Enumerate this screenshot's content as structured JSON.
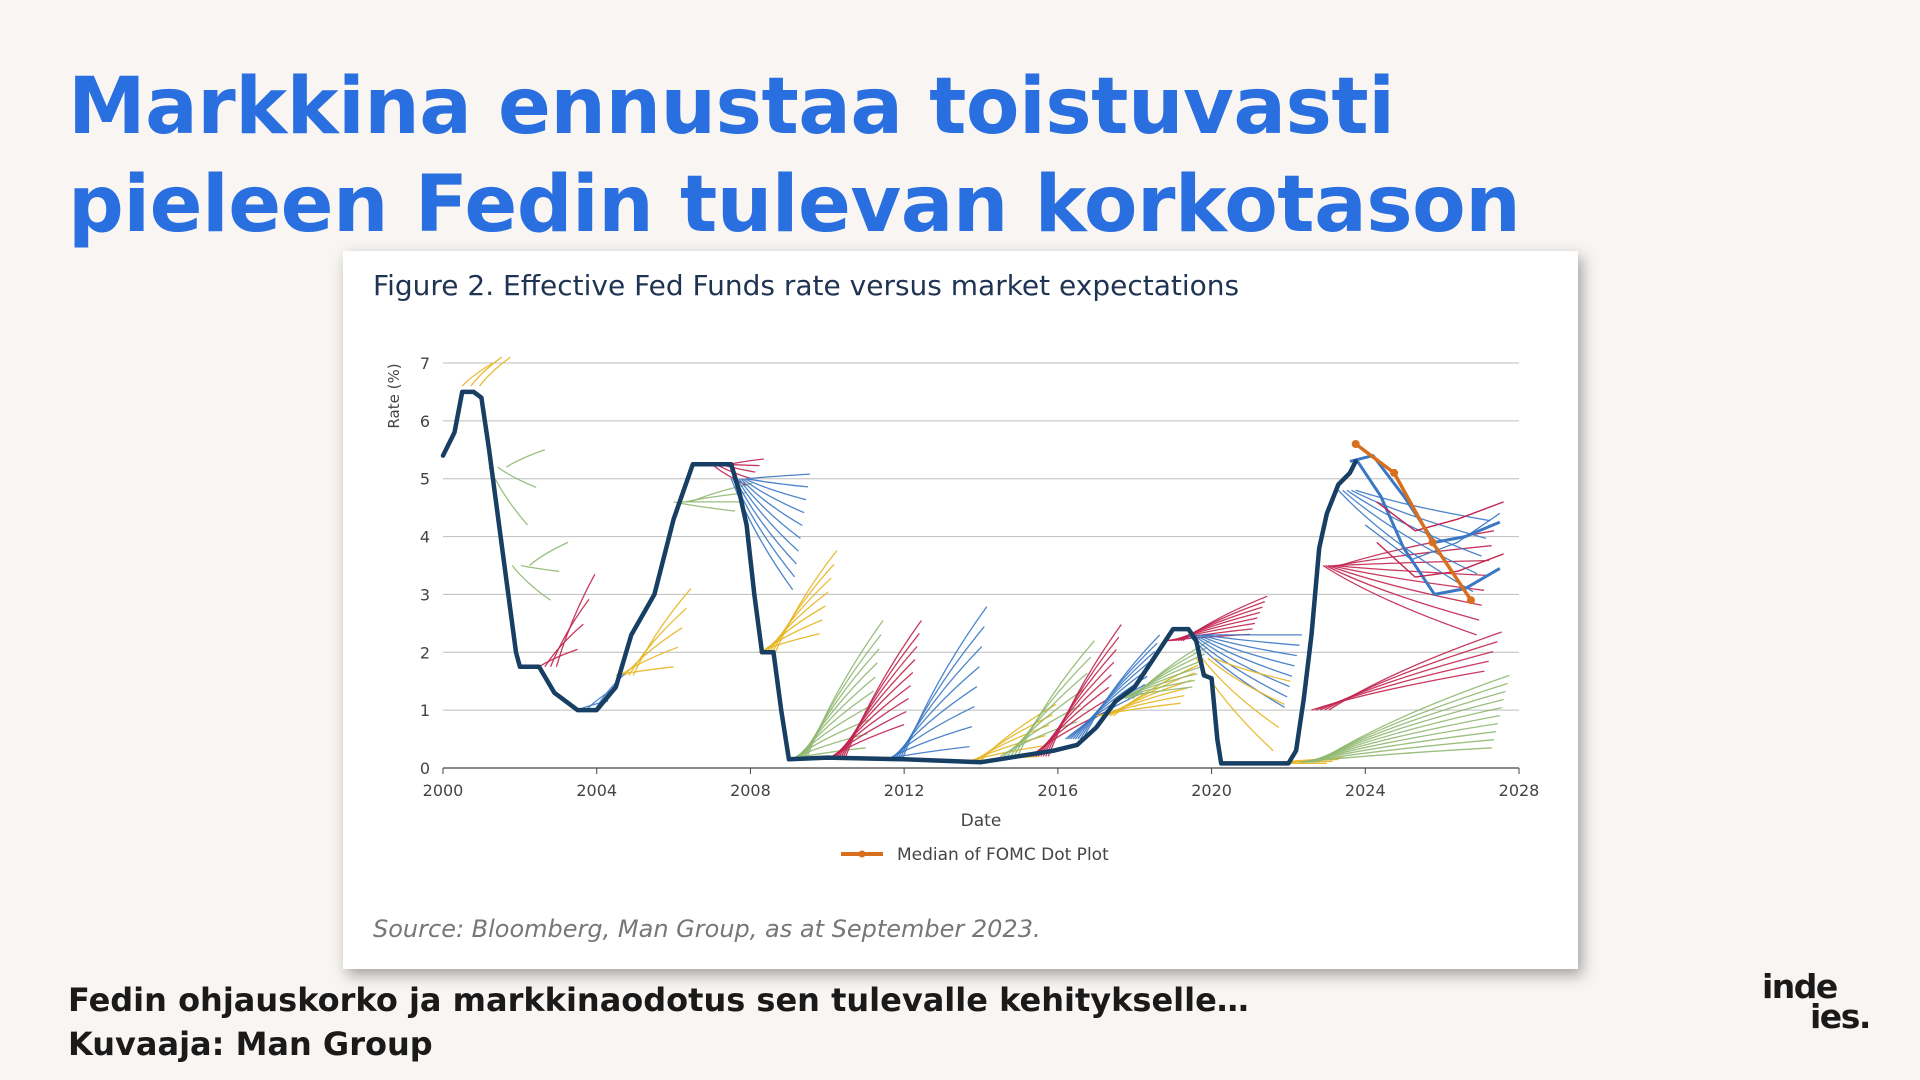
{
  "slide": {
    "title_lines": [
      "Markkina ennustaa toistuvasti",
      "pieleen Fedin tulevan korkotason"
    ],
    "caption_lines": [
      "Fedin ohjauskorko ja markkinaodotus sen tulevalle kehitykselle…",
      "Kuvaaja: Man Group"
    ],
    "logo": {
      "line1": "inde",
      "line2": "ies."
    },
    "colors": {
      "title": "#2a6fdf",
      "background": "#f8f5f2"
    }
  },
  "figure": {
    "title": "Figure 2. Effective Fed Funds rate versus market expectations",
    "source": "Source: Bloomberg, Man Group, as at September 2023."
  },
  "chart_data": {
    "type": "line",
    "xlabel": "Date",
    "ylabel": "Rate (%)",
    "xlim": [
      2000,
      2028
    ],
    "ylim": [
      0,
      7
    ],
    "x_ticks": [
      2000,
      2004,
      2008,
      2012,
      2016,
      2020,
      2024,
      2028
    ],
    "y_ticks": [
      0,
      1,
      2,
      3,
      4,
      5,
      6,
      7
    ],
    "grid": "horizontal",
    "legend_position": "bottom",
    "legend": [
      {
        "name": "Median of FOMC Dot Plot",
        "color": "#d86f1e"
      }
    ],
    "series_colors": {
      "effective_rate": "#173e63",
      "fomc_median": "#d86f1e",
      "expectations": [
        "#3a78c4",
        "#c2234f",
        "#8fb871",
        "#e6b520"
      ]
    },
    "series": [
      {
        "role": "effective_rate",
        "x": [
          2000.0,
          2000.3,
          2000.5,
          2000.8,
          2001.0,
          2001.2,
          2001.5,
          2001.7,
          2001.9,
          2002.0,
          2002.5,
          2002.9,
          2003.0,
          2003.5,
          2004.0,
          2004.5,
          2004.9,
          2005.5,
          2006.0,
          2006.5,
          2007.0,
          2007.5,
          2007.7,
          2007.9,
          2008.1,
          2008.3,
          2008.6,
          2008.8,
          2009.0,
          2010.0,
          2012.0,
          2014.0,
          2015.9,
          2016.5,
          2017.0,
          2017.5,
          2018.0,
          2018.5,
          2019.0,
          2019.4,
          2019.6,
          2019.8,
          2020.0,
          2020.15,
          2020.25,
          2021.0,
          2022.0,
          2022.2,
          2022.4,
          2022.6,
          2022.8,
          2023.0,
          2023.3,
          2023.6,
          2023.75
        ],
        "y": [
          5.4,
          5.8,
          6.5,
          6.5,
          6.4,
          5.5,
          4.0,
          3.0,
          2.0,
          1.75,
          1.75,
          1.3,
          1.25,
          1.0,
          1.0,
          1.4,
          2.3,
          3.0,
          4.3,
          5.25,
          5.25,
          5.25,
          4.8,
          4.2,
          3.0,
          2.0,
          2.0,
          1.0,
          0.15,
          0.18,
          0.15,
          0.1,
          0.3,
          0.4,
          0.7,
          1.15,
          1.4,
          1.9,
          2.4,
          2.4,
          2.2,
          1.6,
          1.55,
          0.5,
          0.08,
          0.08,
          0.08,
          0.3,
          1.2,
          2.3,
          3.8,
          4.4,
          4.9,
          5.1,
          5.3
        ]
      },
      {
        "name": "Median of FOMC Dot Plot",
        "role": "fomc_median",
        "x": [
          2023.75,
          2024.75,
          2025.75,
          2026.75
        ],
        "y": [
          5.6,
          5.1,
          3.9,
          2.9
        ]
      }
    ],
    "expectation_bundles": [
      {
        "start": 2000.5,
        "rate": 6.6,
        "color": "#e6b520",
        "count": 3,
        "span": 0.8,
        "slope_min": 0.5,
        "slope_max": 1.0
      },
      {
        "start": 2001.2,
        "rate": 5.2,
        "color": "#8fb871",
        "count": 3,
        "span": 1.0,
        "slope_min": -1.0,
        "slope_max": 0.3
      },
      {
        "start": 2001.8,
        "rate": 3.5,
        "color": "#8fb871",
        "count": 3,
        "span": 1.0,
        "slope_min": -0.6,
        "slope_max": 0.4
      },
      {
        "start": 2002.5,
        "rate": 1.75,
        "color": "#c2234f",
        "count": 4,
        "span": 1.0,
        "slope_min": 0.3,
        "slope_max": 1.6
      },
      {
        "start": 2003.5,
        "rate": 1.0,
        "color": "#3a78c4",
        "count": 3,
        "span": 0.8,
        "slope_min": 0.2,
        "slope_max": 0.8
      },
      {
        "start": 2004.5,
        "rate": 1.6,
        "color": "#e6b520",
        "count": 5,
        "span": 1.5,
        "slope_min": 0.1,
        "slope_max": 1.0
      },
      {
        "start": 2006.0,
        "rate": 4.6,
        "color": "#8fb871",
        "count": 4,
        "span": 1.6,
        "slope_min": -0.1,
        "slope_max": 0.2
      },
      {
        "start": 2007.0,
        "rate": 5.25,
        "color": "#c2234f",
        "count": 5,
        "span": 0.9,
        "slope_min": -0.4,
        "slope_max": 0.1
      },
      {
        "start": 2007.5,
        "rate": 5.0,
        "color": "#3a78c4",
        "count": 10,
        "span": 1.6,
        "slope_min": -1.2,
        "slope_max": 0.05
      },
      {
        "start": 2008.2,
        "rate": 2.0,
        "color": "#e6b520",
        "count": 7,
        "span": 1.6,
        "slope_min": 0.2,
        "slope_max": 1.1
      },
      {
        "start": 2009.0,
        "rate": 0.15,
        "color": "#8fb871",
        "count": 10,
        "span": 2.0,
        "slope_min": 0.1,
        "slope_max": 1.2
      },
      {
        "start": 2010.0,
        "rate": 0.15,
        "color": "#c2234f",
        "count": 9,
        "span": 2.0,
        "slope_min": 0.3,
        "slope_max": 1.2
      },
      {
        "start": 2011.5,
        "rate": 0.15,
        "color": "#3a78c4",
        "count": 8,
        "span": 2.2,
        "slope_min": 0.1,
        "slope_max": 1.2
      },
      {
        "start": 2013.5,
        "rate": 0.1,
        "color": "#e6b520",
        "count": 6,
        "span": 2.0,
        "slope_min": 0.05,
        "slope_max": 0.5
      },
      {
        "start": 2014.5,
        "rate": 0.2,
        "color": "#8fb871",
        "count": 6,
        "span": 2.0,
        "slope_min": 0.3,
        "slope_max": 1.0
      },
      {
        "start": 2015.3,
        "rate": 0.2,
        "color": "#c2234f",
        "count": 8,
        "span": 1.9,
        "slope_min": 0.4,
        "slope_max": 1.2
      },
      {
        "start": 2016.2,
        "rate": 0.5,
        "color": "#3a78c4",
        "count": 8,
        "span": 2.0,
        "slope_min": 0.4,
        "slope_max": 0.9
      },
      {
        "start": 2017.0,
        "rate": 0.9,
        "color": "#e6b520",
        "count": 6,
        "span": 2.2,
        "slope_min": 0.1,
        "slope_max": 0.4
      },
      {
        "start": 2017.5,
        "rate": 1.2,
        "color": "#8fb871",
        "count": 8,
        "span": 2.0,
        "slope_min": 0.1,
        "slope_max": 0.5
      },
      {
        "start": 2018.8,
        "rate": 2.2,
        "color": "#c2234f",
        "count": 8,
        "span": 2.2,
        "slope_min": 0.05,
        "slope_max": 0.35
      },
      {
        "start": 2019.4,
        "rate": 2.3,
        "color": "#3a78c4",
        "count": 8,
        "span": 2.5,
        "slope_min": -0.5,
        "slope_max": 0.0
      },
      {
        "start": 2019.6,
        "rate": 1.9,
        "color": "#e6b520",
        "count": 4,
        "span": 2.0,
        "slope_min": -0.8,
        "slope_max": -0.2
      },
      {
        "start": 2021.0,
        "rate": 0.08,
        "color": "#e6b520",
        "count": 4,
        "span": 2.0,
        "slope_min": 0.0,
        "slope_max": 0.05
      },
      {
        "start": 2022.3,
        "rate": 0.1,
        "color": "#8fb871",
        "count": 10,
        "span": 5.0,
        "slope_min": 0.05,
        "slope_max": 0.3
      },
      {
        "start": 2022.6,
        "rate": 1.0,
        "color": "#c2234f",
        "count": 5,
        "span": 4.5,
        "slope_min": 0.15,
        "slope_max": 0.3
      },
      {
        "start": 2022.9,
        "rate": 3.5,
        "color": "#c2234f",
        "count": 8,
        "span": 4.0,
        "slope_min": -0.3,
        "slope_max": 0.15
      },
      {
        "start": 2023.3,
        "rate": 4.8,
        "color": "#3a78c4",
        "count": 5,
        "span": 3.5,
        "slope_min": -0.5,
        "slope_max": -0.15
      }
    ],
    "expectation_curves": [
      {
        "x": [
          2023.6,
          2024.2,
          2025.0,
          2025.8,
          2026.6,
          2027.5
        ],
        "y": [
          5.3,
          5.4,
          4.7,
          3.9,
          4.0,
          4.25
        ],
        "color": "#3a78c4",
        "width": 3
      },
      {
        "x": [
          2023.8,
          2024.4,
          2025.0,
          2025.8,
          2026.6,
          2027.5
        ],
        "y": [
          5.3,
          4.7,
          3.8,
          3.0,
          3.1,
          3.45
        ],
        "color": "#3a78c4",
        "width": 3
      },
      {
        "x": [
          2024.3,
          2025.3,
          2026.4,
          2027.6
        ],
        "y": [
          4.6,
          4.1,
          4.3,
          4.6
        ],
        "color": "#c2234f",
        "width": 1.4
      },
      {
        "x": [
          2024.3,
          2025.3,
          2026.4,
          2027.6
        ],
        "y": [
          3.9,
          3.3,
          3.4,
          3.7
        ],
        "color": "#c2234f",
        "width": 1.4
      },
      {
        "x": [
          2024.0,
          2025.2,
          2026.4,
          2027.5
        ],
        "y": [
          4.2,
          3.6,
          3.9,
          4.4
        ],
        "color": "#3a78c4",
        "width": 1.2
      }
    ]
  }
}
